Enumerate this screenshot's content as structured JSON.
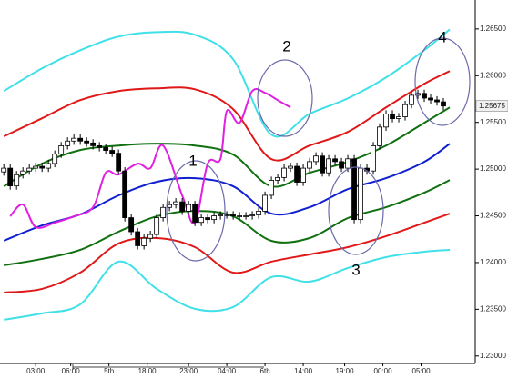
{
  "chart_data": {
    "type": "candlestick",
    "xlim": [
      -0.6,
      74
    ],
    "ylim": [
      1.2292,
      1.2681
    ],
    "xticks": [
      {
        "value": 5,
        "label": "03:00"
      },
      {
        "value": 10.5,
        "label": "06:00"
      },
      {
        "value": 16.5,
        "label": "5th"
      },
      {
        "value": 22.5,
        "label": "18:00"
      },
      {
        "value": 29,
        "label": "23:00"
      },
      {
        "value": 35,
        "label": "04:00"
      },
      {
        "value": 41,
        "label": "6th"
      },
      {
        "value": 47,
        "label": "14:00"
      },
      {
        "value": 53.5,
        "label": "19:00"
      },
      {
        "value": 59.5,
        "label": "00:00"
      },
      {
        "value": 65.5,
        "label": "05:00"
      }
    ],
    "yticks": [
      {
        "value": 1.265,
        "label": "1.26500"
      },
      {
        "value": 1.26,
        "label": "1.26000"
      },
      {
        "value": 1.255,
        "label": "1.25500"
      },
      {
        "value": 1.25,
        "label": "1.25000"
      },
      {
        "value": 1.245,
        "label": "1.24500"
      },
      {
        "value": 1.24,
        "label": "1.24000"
      },
      {
        "value": 1.235,
        "label": "1.23500"
      },
      {
        "value": 1.23,
        "label": "1.23000"
      }
    ],
    "up_color": "#ffffff",
    "down_color": "#000000",
    "open": [
      1.2497,
      1.2501,
      1.2482,
      1.2494,
      1.2498,
      1.2501,
      1.2503,
      1.2501,
      1.2506,
      1.2516,
      1.2525,
      1.253,
      1.2533,
      1.253,
      1.2528,
      1.2525,
      1.2523,
      1.252,
      1.2517,
      1.2498,
      1.2448,
      1.2433,
      1.2418,
      1.2426,
      1.243,
      1.2448,
      1.2459,
      1.2462,
      1.2465,
      1.2455,
      1.2462,
      1.2443,
      1.2448,
      1.2446,
      1.245,
      1.2451,
      1.2451,
      1.245,
      1.245,
      1.245,
      1.2451,
      1.2455,
      1.2472,
      1.2488,
      1.2491,
      1.2501,
      1.2503,
      1.2486,
      1.2501,
      1.2508,
      1.2514,
      1.2496,
      1.2511,
      1.2508,
      1.2501,
      1.2511,
      1.2446,
      1.2501,
      1.2498,
      1.2525,
      1.2545,
      1.2559,
      1.2554,
      1.2556,
      1.2569,
      1.2579,
      1.2581,
      1.2576,
      1.2574,
      1.2572
    ],
    "high": [
      1.2505,
      1.2505,
      1.2498,
      1.2502,
      1.2505,
      1.2507,
      1.2507,
      1.251,
      1.252,
      1.2529,
      1.2534,
      1.2537,
      1.2537,
      1.2534,
      1.2532,
      1.2529,
      1.2527,
      1.2524,
      1.2521,
      1.2502,
      1.2452,
      1.2437,
      1.243,
      1.2434,
      1.2452,
      1.2463,
      1.2466,
      1.2469,
      1.2469,
      1.2466,
      1.2466,
      1.2452,
      1.2452,
      1.2454,
      1.2455,
      1.2455,
      1.2455,
      1.2454,
      1.2454,
      1.2455,
      1.2459,
      1.2476,
      1.2492,
      1.2495,
      1.2505,
      1.2507,
      1.2507,
      1.2505,
      1.2512,
      1.2518,
      1.2518,
      1.2515,
      1.2515,
      1.2512,
      1.2515,
      1.2515,
      1.2505,
      1.2505,
      1.2529,
      1.2549,
      1.2563,
      1.2563,
      1.256,
      1.2573,
      1.2583,
      1.2585,
      1.2585,
      1.258,
      1.2578,
      1.2576
    ],
    "low": [
      1.2493,
      1.2478,
      1.2478,
      1.249,
      1.2494,
      1.2497,
      1.2497,
      1.2497,
      1.2502,
      1.2512,
      1.2521,
      1.2526,
      1.2526,
      1.2524,
      1.2521,
      1.2519,
      1.2516,
      1.2513,
      1.2494,
      1.2444,
      1.2429,
      1.2414,
      1.2414,
      1.2422,
      1.2426,
      1.2444,
      1.2455,
      1.2458,
      1.2451,
      1.2451,
      1.2439,
      1.2439,
      1.2442,
      1.2442,
      1.2446,
      1.2447,
      1.2446,
      1.2446,
      1.2446,
      1.2446,
      1.2447,
      1.2451,
      1.2468,
      1.2484,
      1.2487,
      1.2497,
      1.2482,
      1.2482,
      1.2497,
      1.2504,
      1.2492,
      1.2492,
      1.2504,
      1.2497,
      1.2497,
      1.2442,
      1.2442,
      1.2494,
      1.2494,
      1.2521,
      1.2541,
      1.255,
      1.255,
      1.2552,
      1.2565,
      1.2575,
      1.2572,
      1.257,
      1.2568,
      1.2563
    ],
    "close": [
      1.2501,
      1.2482,
      1.2494,
      1.2498,
      1.2501,
      1.2503,
      1.2501,
      1.2506,
      1.2516,
      1.2525,
      1.253,
      1.2533,
      1.253,
      1.2528,
      1.2525,
      1.2523,
      1.252,
      1.2517,
      1.2498,
      1.2448,
      1.2433,
      1.2418,
      1.2426,
      1.243,
      1.2448,
      1.2459,
      1.2462,
      1.2465,
      1.2455,
      1.2462,
      1.2443,
      1.2448,
      1.2446,
      1.245,
      1.2451,
      1.2451,
      1.245,
      1.245,
      1.245,
      1.2451,
      1.2455,
      1.2472,
      1.2488,
      1.2491,
      1.2501,
      1.2503,
      1.2486,
      1.2501,
      1.2508,
      1.2514,
      1.2496,
      1.2511,
      1.2508,
      1.2501,
      1.2511,
      1.2446,
      1.2501,
      1.2498,
      1.2525,
      1.2545,
      1.2559,
      1.2554,
      1.2556,
      1.2569,
      1.2579,
      1.2581,
      1.2576,
      1.2574,
      1.2572,
      1.25675
    ],
    "last_value_label": "1.25675",
    "series": [
      {
        "color": "#40e0e8",
        "x": [
          0,
          6,
          12,
          18,
          24,
          30,
          36,
          42,
          48,
          54,
          60,
          66,
          70
        ],
        "values": [
          1.25835,
          1.26078,
          1.26272,
          1.26418,
          1.26466,
          1.26437,
          1.26175,
          1.25369,
          1.25592,
          1.25757,
          1.25981,
          1.26272,
          1.26495
        ]
      },
      {
        "color": "#e01818",
        "x": [
          0,
          6,
          12,
          18,
          24,
          30,
          36,
          42,
          48,
          54,
          60,
          66,
          70
        ],
        "values": [
          1.2535,
          1.25544,
          1.25738,
          1.25835,
          1.25864,
          1.25854,
          1.25641,
          1.25107,
          1.25252,
          1.25398,
          1.2566,
          1.25913,
          1.26049
        ]
      },
      {
        "color": "#107010",
        "x": [
          0,
          6,
          12,
          18,
          24,
          30,
          36,
          42,
          48,
          54,
          60,
          66,
          70
        ],
        "values": [
          1.24816,
          1.25058,
          1.25204,
          1.25252,
          1.25272,
          1.25252,
          1.25155,
          1.24816,
          1.24961,
          1.25078,
          1.25252,
          1.25495,
          1.2566
        ]
      },
      {
        "color": "#1020d0",
        "x": [
          0,
          6,
          12,
          18,
          24,
          30,
          36,
          42,
          48,
          54,
          60,
          66,
          70
        ],
        "values": [
          1.24233,
          1.24398,
          1.24515,
          1.24718,
          1.24864,
          1.24903,
          1.24816,
          1.24524,
          1.24592,
          1.24786,
          1.24903,
          1.25078,
          1.25272
        ]
      },
      {
        "color": "#107010",
        "x": [
          0,
          6,
          12,
          18,
          24,
          30,
          36,
          42,
          48,
          54,
          60,
          66,
          70
        ],
        "values": [
          1.23971,
          1.24039,
          1.24136,
          1.2433,
          1.24495,
          1.24553,
          1.24495,
          1.24233,
          1.24262,
          1.24476,
          1.24592,
          1.24748,
          1.24883
        ]
      },
      {
        "color": "#e01818",
        "x": [
          0,
          6,
          12,
          18,
          24,
          30,
          36,
          42,
          48,
          54,
          60,
          66,
          70
        ],
        "values": [
          1.23679,
          1.23718,
          1.23893,
          1.24204,
          1.24262,
          1.24165,
          1.23893,
          1.2401,
          1.24087,
          1.24165,
          1.24282,
          1.24427,
          1.24524
        ]
      },
      {
        "color": "#40e0e8",
        "x": [
          0,
          6,
          12,
          18,
          24,
          30,
          36,
          42,
          48,
          54,
          60,
          66,
          70
        ],
        "values": [
          1.23388,
          1.23456,
          1.23553,
          1.2401,
          1.23718,
          1.23505,
          1.23524,
          1.23844,
          1.23796,
          1.23942,
          1.24058,
          1.24116,
          1.24136
        ]
      },
      {
        "color": "#e020e0",
        "x": [
          1,
          3,
          5,
          8,
          11,
          14,
          16,
          18,
          21,
          23,
          25,
          28,
          30,
          32,
          34,
          35,
          37,
          39,
          41,
          43,
          45
        ],
        "values": [
          1.24495,
          1.24621,
          1.24379,
          1.24427,
          1.24495,
          1.24592,
          1.24961,
          1.24942,
          1.25058,
          1.2501,
          1.25252,
          1.24718,
          1.24427,
          1.25058,
          1.25107,
          1.25621,
          1.25495,
          1.25835,
          1.25816,
          1.25738,
          1.2566
        ]
      }
    ],
    "annotations": [
      "1",
      "2",
      "3",
      "4"
    ]
  }
}
